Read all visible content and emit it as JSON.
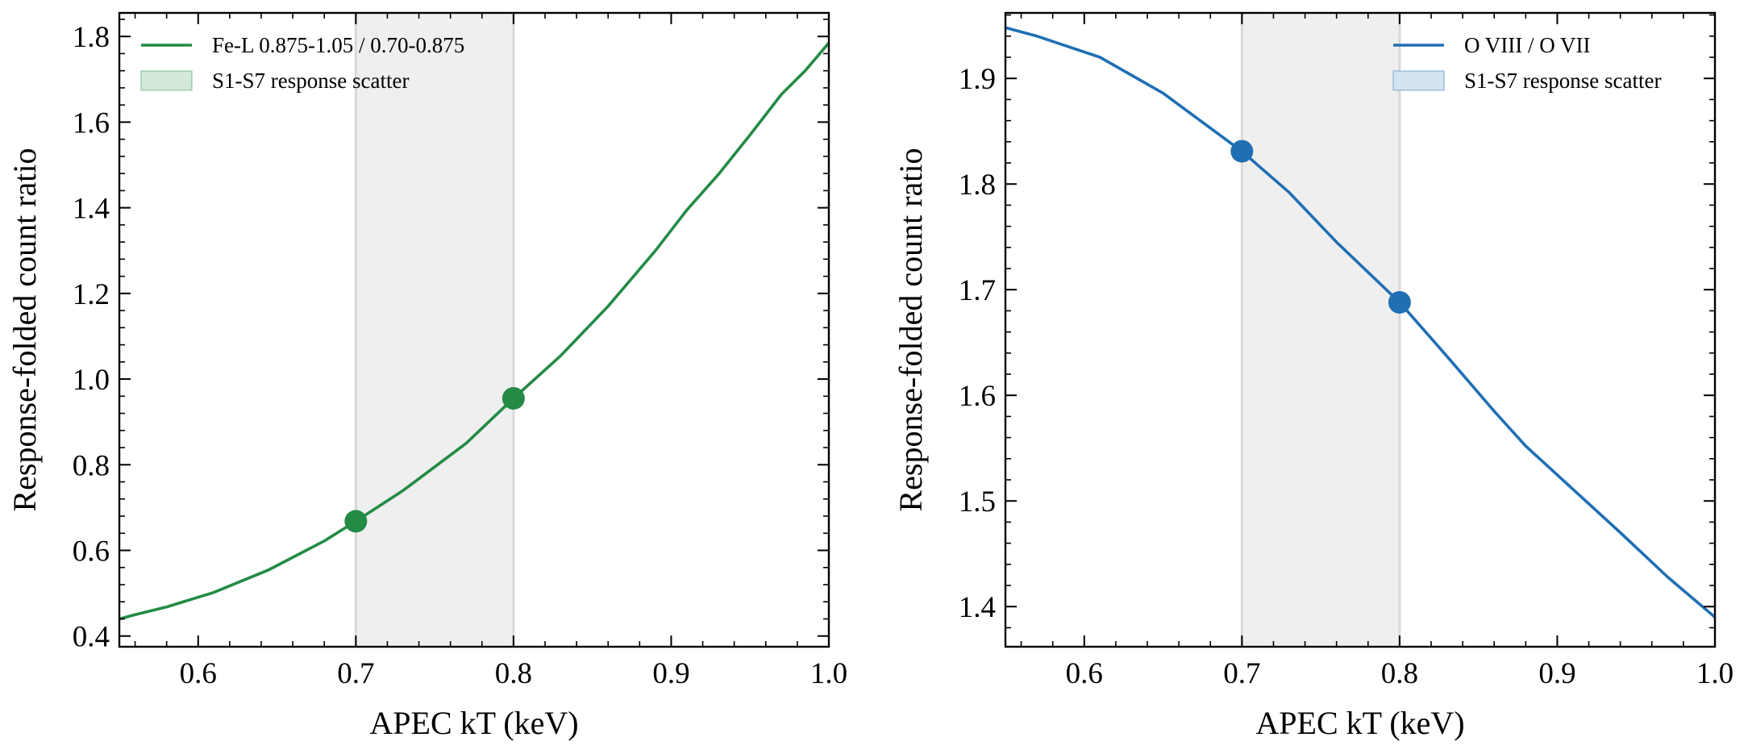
{
  "colors": {
    "green": "#238b45",
    "blue": "#1f6fb4",
    "band": "#efefef",
    "band_edge": "#d9d9d9",
    "green_fill": "#d3e9d8",
    "blue_fill": "#d2e3f2"
  },
  "chart_data": [
    {
      "type": "line",
      "xlabel": "APEC kT (keV)",
      "ylabel": "Response-folded count ratio",
      "xlim": [
        0.55,
        1.0
      ],
      "ylim": [
        0.375,
        1.855
      ],
      "xticks": [
        "0.6",
        "0.7",
        "0.8",
        "0.9",
        "1.0"
      ],
      "yticks": [
        "0.4",
        "0.6",
        "0.8",
        "1.0",
        "1.2",
        "1.4",
        "1.6",
        "1.8"
      ],
      "xminor_step": 0.02,
      "yminor_step": 0.04,
      "shaded_band": [
        0.7,
        0.8
      ],
      "legend_position": "upper left",
      "series": [
        {
          "name": "Fe-L 0.875-1.05 / 0.70-0.875",
          "color": "#238b45",
          "x": [
            0.55,
            0.56,
            0.58,
            0.61,
            0.645,
            0.68,
            0.7,
            0.73,
            0.77,
            0.8,
            0.83,
            0.86,
            0.89,
            0.91,
            0.93,
            0.95,
            0.97,
            0.985,
            1.0
          ],
          "y": [
            0.44,
            0.45,
            0.468,
            0.502,
            0.555,
            0.622,
            0.668,
            0.74,
            0.85,
            0.955,
            1.055,
            1.17,
            1.3,
            1.395,
            1.478,
            1.57,
            1.665,
            1.72,
            1.785
          ]
        }
      ],
      "band_legend": "S1-S7 response scatter",
      "markers": {
        "x": [
          0.7,
          0.8
        ],
        "y": [
          0.668,
          0.955
        ]
      }
    },
    {
      "type": "line",
      "xlabel": "APEC kT (keV)",
      "ylabel": "Response-folded count ratio",
      "xlim": [
        0.55,
        1.0
      ],
      "ylim": [
        1.362,
        1.962
      ],
      "xticks": [
        "0.6",
        "0.7",
        "0.8",
        "0.9",
        "1.0"
      ],
      "yticks": [
        "1.4",
        "1.5",
        "1.6",
        "1.7",
        "1.8",
        "1.9"
      ],
      "xminor_step": 0.02,
      "yminor_step": 0.02,
      "shaded_band": [
        0.7,
        0.8
      ],
      "legend_position": "upper right",
      "series": [
        {
          "name": "O VIII / O VII",
          "color": "#1f6fb4",
          "x": [
            0.55,
            0.57,
            0.59,
            0.61,
            0.65,
            0.68,
            0.7,
            0.73,
            0.76,
            0.8,
            0.83,
            0.86,
            0.88,
            0.91,
            0.94,
            0.97,
            1.0
          ],
          "y": [
            1.948,
            1.94,
            1.93,
            1.92,
            1.886,
            1.853,
            1.831,
            1.792,
            1.745,
            1.688,
            1.637,
            1.585,
            1.552,
            1.511,
            1.47,
            1.428,
            1.39
          ]
        }
      ],
      "band_legend": "S1-S7 response scatter",
      "markers": {
        "x": [
          0.7,
          0.8
        ],
        "y": [
          1.831,
          1.688
        ]
      }
    }
  ]
}
